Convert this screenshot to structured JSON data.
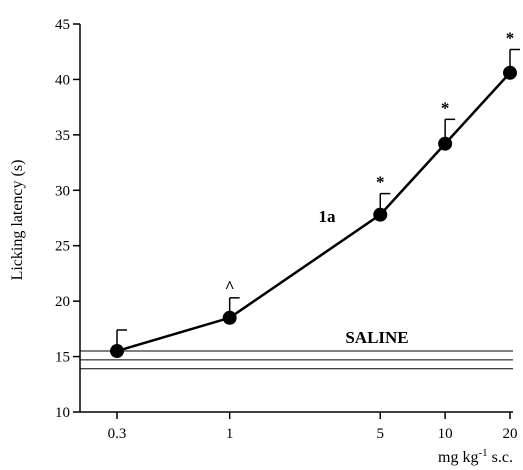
{
  "chart_data": {
    "type": "line",
    "title": "",
    "xlabel": "mg kg-1 s.c.",
    "xlabel_parts": {
      "base": "mg kg",
      "sup": "-1",
      "tail": " s.c."
    },
    "ylabel": "Licking latency (s)",
    "x_scale": "log",
    "x_ticks": [
      0.3,
      1,
      5,
      10,
      20
    ],
    "x_tick_labels": [
      "0.3",
      "1",
      "5",
      "10",
      "20"
    ],
    "ylim": [
      10,
      45
    ],
    "y_ticks": [
      10,
      15,
      20,
      25,
      30,
      35,
      40,
      45
    ],
    "y_tick_labels": [
      "10",
      "15",
      "20",
      "25",
      "30",
      "35",
      "40",
      "45"
    ],
    "grid": false,
    "series": [
      {
        "name": "1a",
        "x": [
          0.3,
          1,
          5,
          10,
          20
        ],
        "y": [
          15.5,
          18.5,
          27.8,
          34.2,
          40.6
        ],
        "error": [
          1.9,
          1.8,
          1.9,
          2.2,
          2.1
        ],
        "markers": [
          "",
          "^",
          "*",
          "*",
          "*"
        ],
        "color": "#000000"
      }
    ],
    "reference": {
      "label": "SALINE",
      "mean": 14.7,
      "upper": 15.5,
      "lower": 13.9
    }
  }
}
